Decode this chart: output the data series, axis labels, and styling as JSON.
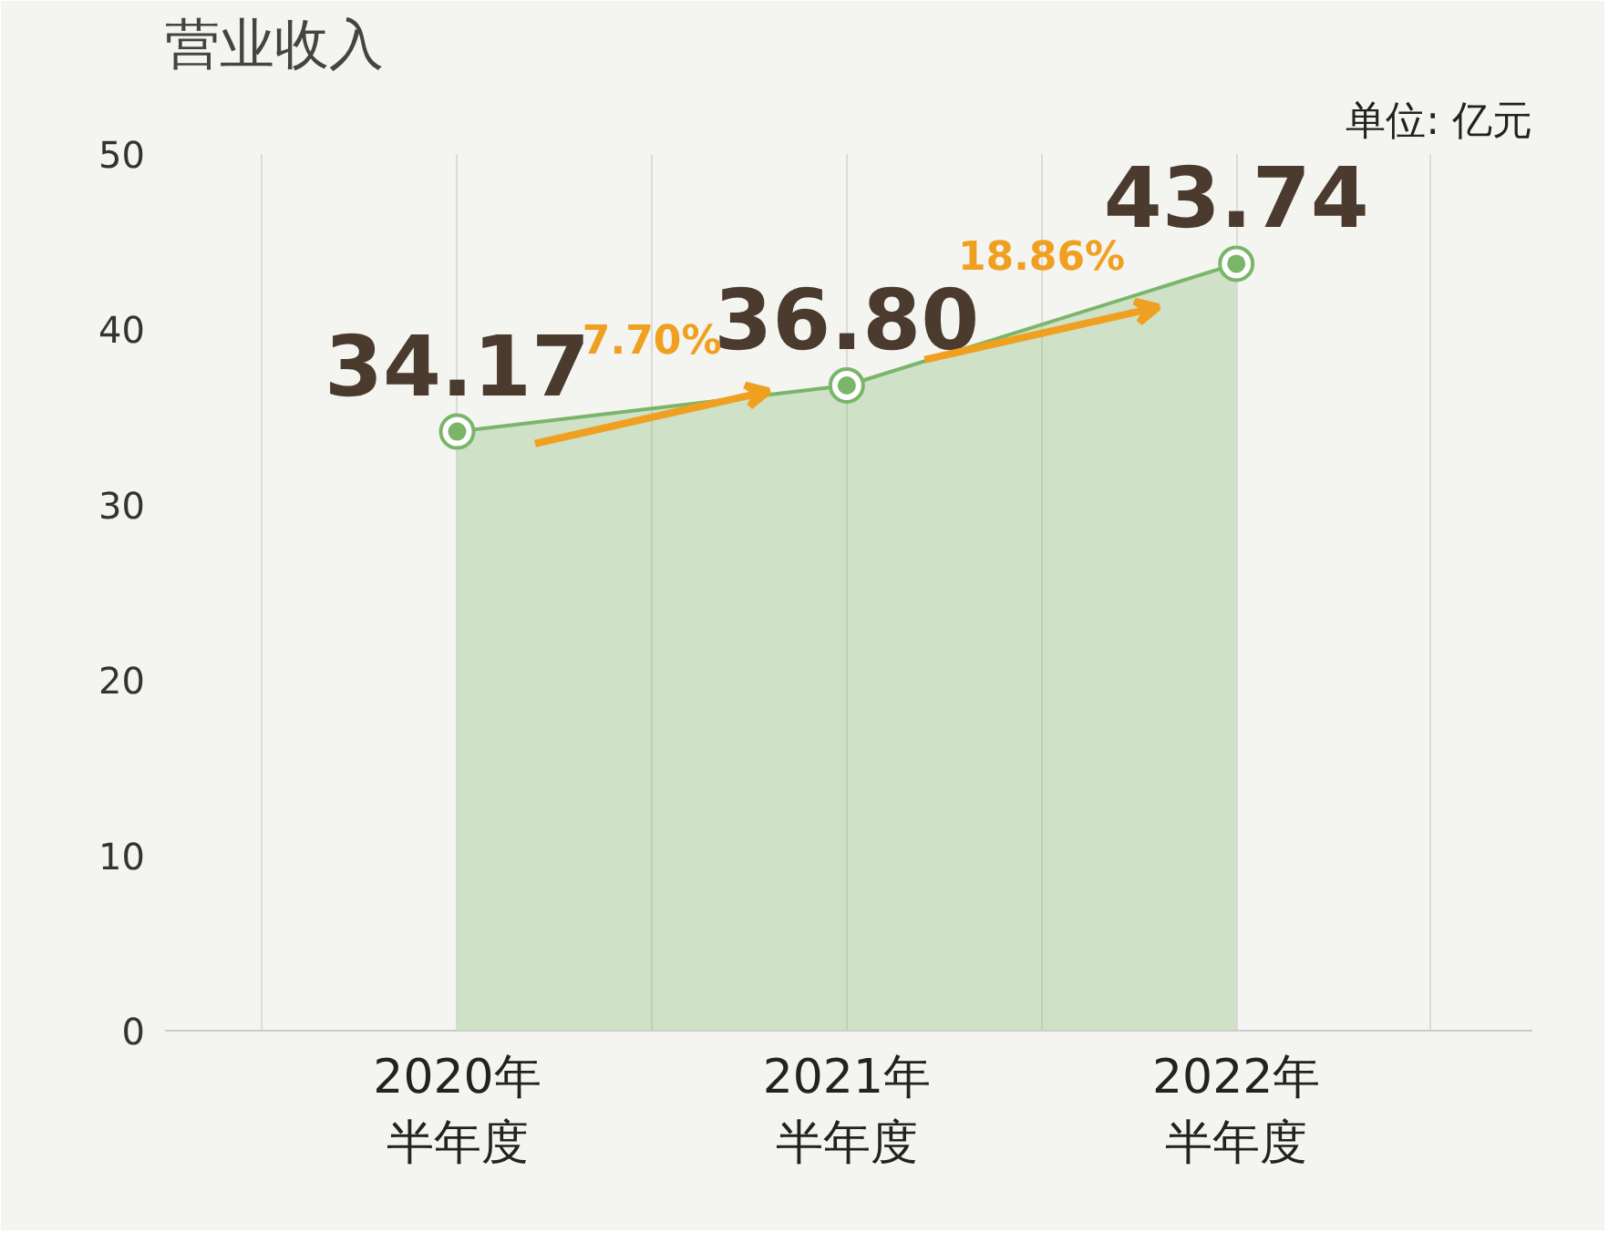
{
  "chart_data": {
    "type": "area",
    "title": "营业收入",
    "subtitle": "单位: 亿元",
    "categories": [
      "2020年半年度",
      "2021年半年度",
      "2022年半年度"
    ],
    "values": [
      34.17,
      36.8,
      43.74
    ],
    "color": "#7ab56a",
    "ylim": [
      0,
      50
    ],
    "yticks": [
      0,
      10,
      20,
      30,
      40,
      50
    ],
    "grid": "x",
    "marker": "circle",
    "value_labels": [
      "34.17",
      "36.80",
      "43.74"
    ],
    "annotations": [
      "7.70%",
      "18.86%"
    ]
  }
}
